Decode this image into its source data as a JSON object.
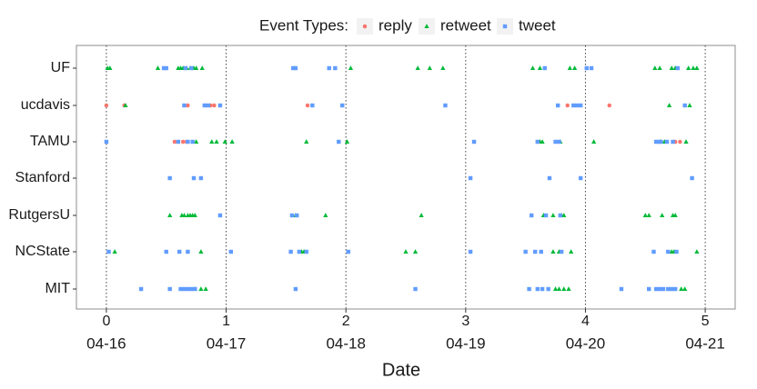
{
  "chart_data": {
    "type": "strip",
    "legend_title": "Event Types:",
    "x_label": "Date",
    "categories": [
      "UF",
      "ucdavis",
      "TAMU",
      "Stanford",
      "RutgersU",
      "NCState",
      "MIT"
    ],
    "xlim": [
      -0.25,
      5.25
    ],
    "xticks": [
      0,
      1,
      2,
      3,
      4,
      5
    ],
    "xtick_dates": [
      "04-16",
      "04-17",
      "04-18",
      "04-19",
      "04-20",
      "04-21"
    ],
    "vlines": true,
    "legend_position": "top",
    "series": [
      {
        "name": "reply",
        "color": "#F8766D",
        "shape": "circle",
        "values": [
          [],
          [
            0.0,
            0.15,
            0.68,
            0.87,
            0.9,
            1.68,
            3.85,
            4.2
          ],
          [
            0.57,
            0.64,
            0.67,
            4.75,
            4.79
          ],
          [],
          [],
          [],
          []
        ]
      },
      {
        "name": "retweet",
        "color": "#00BA38",
        "shape": "triangle",
        "values": [
          [
            0.01,
            0.03,
            0.43,
            0.6,
            0.62,
            0.64,
            0.67,
            0.7,
            0.73,
            0.75,
            0.8,
            1.57,
            2.04,
            2.6,
            2.7,
            2.81,
            3.56,
            3.62,
            3.87,
            3.91,
            4.58,
            4.62,
            4.72,
            4.75,
            4.86,
            4.9,
            4.93
          ],
          [
            0.16,
            4.7,
            4.87
          ],
          [
            0.75,
            0.88,
            0.92,
            0.99,
            1.05,
            1.67,
            2.01,
            3.62,
            3.64,
            3.79,
            4.07,
            4.63,
            4.66,
            4.84
          ],
          [],
          [
            0.53,
            0.63,
            0.65,
            0.68,
            0.7,
            0.72,
            0.74,
            1.58,
            1.83,
            2.63,
            3.65,
            3.73,
            3.8,
            3.82,
            4.5,
            4.53,
            4.64,
            4.73,
            4.75
          ],
          [
            0.07,
            0.79,
            1.63,
            1.65,
            2.5,
            2.58,
            3.73,
            3.78,
            3.88,
            4.72,
            4.74,
            4.93
          ],
          [
            0.74,
            0.79,
            0.83,
            3.75,
            3.78,
            3.82,
            3.86,
            4.8,
            4.83
          ]
        ]
      },
      {
        "name": "tweet",
        "color": "#619CFF",
        "shape": "square",
        "values": [
          [
            0.48,
            0.5,
            0.66,
            0.71,
            1.56,
            1.58,
            1.86,
            1.91,
            3.66,
            4.01,
            4.05,
            4.77
          ],
          [
            0.65,
            0.82,
            0.85,
            0.95,
            1.72,
            1.97,
            2.83,
            3.77,
            3.9,
            3.93,
            3.96,
            4.83
          ],
          [
            0.0,
            0.6,
            0.68,
            0.72,
            1.94,
            3.07,
            3.6,
            3.75,
            3.78,
            4.59,
            4.61,
            4.63,
            4.68,
            4.73
          ],
          [
            0.53,
            0.73,
            0.79,
            3.04,
            3.7,
            3.96,
            4.89
          ],
          [
            0.95,
            1.55,
            1.59,
            3.55,
            3.67,
            3.79
          ],
          [
            0.02,
            0.5,
            0.61,
            0.68,
            1.04,
            1.54,
            1.61,
            1.67,
            2.02,
            3.04,
            3.5,
            3.58,
            3.63,
            3.8,
            4.57,
            4.69,
            4.76
          ],
          [
            0.29,
            0.53,
            0.62,
            0.65,
            0.68,
            0.71,
            0.74,
            1.58,
            2.58,
            3.53,
            3.6,
            3.64,
            3.69,
            4.3,
            4.53,
            4.59,
            4.62,
            4.65,
            4.69,
            4.72,
            4.75
          ]
        ]
      }
    ]
  }
}
